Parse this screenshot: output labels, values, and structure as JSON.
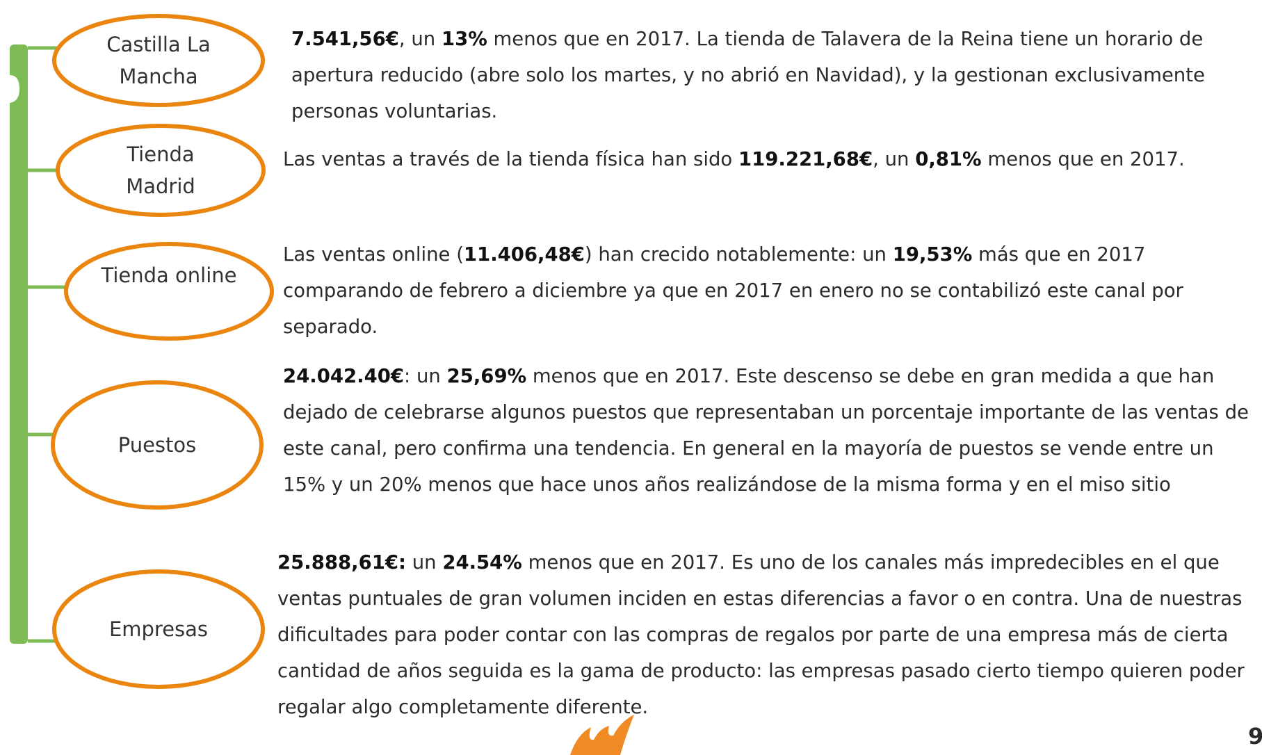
{
  "items": [
    {
      "label": "Castilla La Mancha",
      "text": [
        {
          "text": "7.541,56€",
          "bold": true
        },
        {
          "text": ", un ",
          "bold": false
        },
        {
          "text": "13%",
          "bold": true
        },
        {
          "text": " menos que en 2017. La tienda de Talavera de la Reina tiene un horario de apertura reducido (abre solo los martes, y no abrió en Navidad),  y la gestionan exclusivamente personas voluntarias.",
          "bold": false
        }
      ]
    },
    {
      "label": "Tienda Madrid",
      "text": [
        {
          "text": "Las ventas a través de la tienda física han sido ",
          "bold": false
        },
        {
          "text": "119.221,68€",
          "bold": true
        },
        {
          "text": ", un ",
          "bold": false
        },
        {
          "text": "0,81%",
          "bold": true
        },
        {
          "text": " menos que en 2017.",
          "bold": false
        }
      ]
    },
    {
      "label": "Tienda online",
      "text": [
        {
          "text": "Las ventas online (",
          "bold": false
        },
        {
          "text": "11.406,48€",
          "bold": true
        },
        {
          "text": ") han crecido notablemente: un ",
          "bold": false
        },
        {
          "text": "19,53%",
          "bold": true
        },
        {
          "text": " más que en 2017 comparando de febrero a diciembre ya que en 2017 en enero no se contabilizó este canal por separado.",
          "bold": false
        }
      ]
    },
    {
      "label": "Puestos",
      "text": [
        {
          "text": "24.042.40€",
          "bold": true
        },
        {
          "text": ": un ",
          "bold": false
        },
        {
          "text": "25,69%",
          "bold": true
        },
        {
          "text": " menos que en 2017. Este descenso se debe en gran medida a que han dejado de celebrarse algunos puestos que representaban un porcentaje importante de las ventas de este canal, pero confirma una tendencia. En general en la mayoría de puestos se vende entre un 15% y un 20% menos que hace unos años realizándose de la misma forma y en el miso sitio",
          "bold": false
        }
      ]
    },
    {
      "label": "Empresas",
      "text": [
        {
          "text": "25.888,61€:",
          "bold": true
        },
        {
          "text": " un ",
          "bold": false
        },
        {
          "text": "24.54%",
          "bold": true
        },
        {
          "text": " menos que en 2017. Es uno de los canales más impredecibles en el que ventas puntuales de gran volumen inciden en estas diferencias a favor o en contra. Una de nuestras dificultades para poder contar con las compras de regalos por parte de una empresa más de cierta cantidad de años seguida es la gama de producto: las empresas pasado cierto tiempo quieren poder regalar algo completamente diferente.",
          "bold": false
        }
      ]
    }
  ],
  "page_number": "9"
}
